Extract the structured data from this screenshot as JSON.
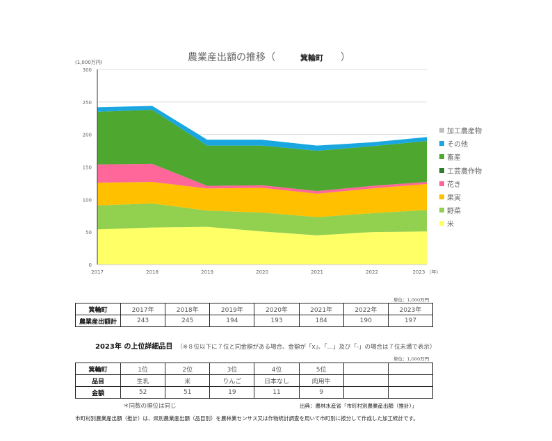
{
  "chart": {
    "title_prefix": "農業産出額の推移（",
    "town": "箕輪町",
    "title_suffix": "）",
    "y_unit": "(1,000万円)",
    "x_unit": "（年）"
  },
  "chart_data": {
    "type": "area",
    "stacked": true,
    "title": "農業産出額の推移（箕輪町）",
    "xlabel": "（年）",
    "ylabel": "(1,000万円)",
    "ylim": [
      0,
      300
    ],
    "yticks": [
      0,
      50,
      100,
      150,
      200,
      250,
      300
    ],
    "grid": true,
    "legend_position": "right",
    "categories": [
      "2017",
      "2018",
      "2019",
      "2020",
      "2021",
      "2022",
      "2023"
    ],
    "series": [
      {
        "name": "米",
        "color": "#FFFF66",
        "values": [
          54,
          57,
          58,
          51,
          45,
          50,
          51
        ]
      },
      {
        "name": "野菜",
        "color": "#92D050",
        "values": [
          37,
          37,
          25,
          29,
          28,
          29,
          33
        ]
      },
      {
        "name": "果実",
        "color": "#FFC000",
        "values": [
          35,
          33,
          34,
          38,
          36,
          38,
          40
        ]
      },
      {
        "name": "花き",
        "color": "#FF6699",
        "values": [
          28,
          28,
          4,
          4,
          4,
          4,
          3
        ]
      },
      {
        "name": "工芸農作物",
        "color": "#2E7D32",
        "values": [
          0,
          0,
          0,
          0,
          0,
          0,
          0
        ]
      },
      {
        "name": "畜産",
        "color": "#4EA72E",
        "values": [
          81,
          83,
          62,
          61,
          62,
          61,
          63
        ]
      },
      {
        "name": "その他",
        "color": "#1AA7E0",
        "values": [
          7,
          6,
          9,
          9,
          8,
          6,
          6
        ]
      },
      {
        "name": "加工農産物",
        "color": "#BFBFBF",
        "values": [
          0,
          0,
          0,
          0,
          0,
          0,
          0
        ]
      }
    ],
    "totals": [
      243,
      245,
      194,
      193,
      184,
      190,
      197
    ]
  },
  "legend": [
    {
      "label": "加工農産物",
      "color": "#BFBFBF"
    },
    {
      "label": "その他",
      "color": "#1AA7E0"
    },
    {
      "label": "畜産",
      "color": "#4EA72E"
    },
    {
      "label": "工芸農作物",
      "color": "#2E7D32"
    },
    {
      "label": "花き",
      "color": "#FF6699"
    },
    {
      "label": "果実",
      "color": "#FFC000"
    },
    {
      "label": "野菜",
      "color": "#92D050"
    },
    {
      "label": "米",
      "color": "#FFFF66"
    }
  ],
  "totals_table": {
    "unit": "単位：1,000万円",
    "header": [
      "箕輪町",
      "2017年",
      "2018年",
      "2019年",
      "2020年",
      "2021年",
      "2022年",
      "2023年"
    ],
    "row": [
      "農業産出額計",
      "243",
      "245",
      "194",
      "193",
      "184",
      "190",
      "197"
    ]
  },
  "top_items": {
    "title": "2023年 の上位詳細品目",
    "note": "（※８位以下に７位と同金額がある場合、金額が「x」、「…」及び「-」の場合は７位未満で表示）",
    "unit": "単位：1,000万円",
    "rank_row": [
      "箕輪町",
      "1位",
      "2位",
      "3位",
      "4位",
      "5位",
      "",
      ""
    ],
    "item_row": [
      "品目",
      "生乳",
      "米",
      "りんご",
      "日本なし",
      "肉用牛",
      "",
      ""
    ],
    "amount_row": [
      "金額",
      "52",
      "51",
      "19",
      "11",
      "9",
      "",
      ""
    ],
    "same_rank_note": "＊同数の順位は同じ",
    "source": "出典：農林水産省「市町村別農業産出額（推計）」"
  },
  "footnote": "市町村別農業産出額（推計）は、県別農業産出額（品目別）を農林業センサス又は作物統計調査を用いて市町別に按分して作成した加工統計です。"
}
